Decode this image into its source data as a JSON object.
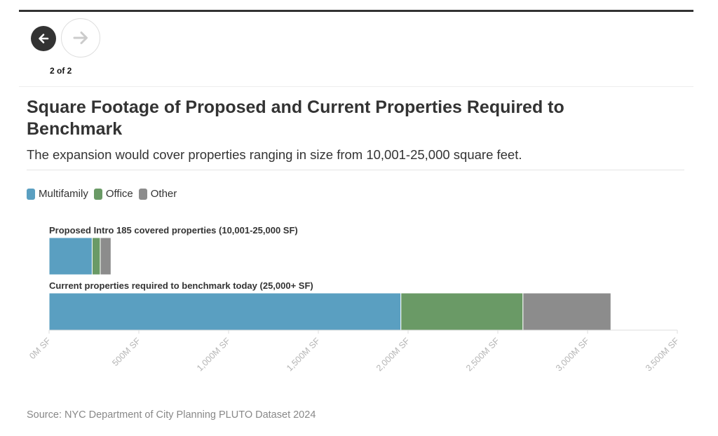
{
  "nav": {
    "prev_icon": "arrow-left-icon",
    "next_icon": "arrow-right-icon",
    "pager_text": "2 of 2"
  },
  "title": "Square Footage of Proposed and Current Properties Required to Benchmark",
  "subtitle": "The expansion would cover properties ranging in size from 10,001-25,000 square feet.",
  "source": "Source: NYC Department of City Planning PLUTO Dataset 2024",
  "colors": {
    "Multifamily": "#5a9fc1",
    "Office": "#6a9a66",
    "Other": "#8c8c8c"
  },
  "chart_data": {
    "type": "bar",
    "orientation": "horizontal",
    "stacked": true,
    "categories": [
      "Proposed Intro 185 covered properties (10,001-25,000 SF)",
      "Current properties required to benchmark today (25,000+ SF)"
    ],
    "series": [
      {
        "name": "Multifamily",
        "values": [
          240,
          1960
        ]
      },
      {
        "name": "Office",
        "values": [
          45,
          680
        ]
      },
      {
        "name": "Other",
        "values": [
          60,
          490
        ]
      }
    ],
    "xlim": [
      0,
      3500
    ],
    "xticks": [
      0,
      500,
      1000,
      1500,
      2000,
      2500,
      3000,
      3500
    ],
    "xtick_labels": [
      "0M SF",
      "500M SF",
      "1,000M SF",
      "1,500M SF",
      "2,000M SF",
      "2,500M SF",
      "3,000M SF",
      "3,500M SF"
    ],
    "legend_position": "top-left",
    "grid": false
  }
}
